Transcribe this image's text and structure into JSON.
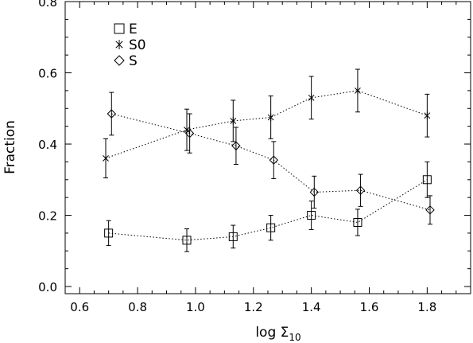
{
  "chart_data": {
    "type": "scatter",
    "xlabel": "log Σ",
    "xlabel_sub": "10",
    "ylabel": "Fraction",
    "xlim": [
      0.55,
      1.95
    ],
    "ylim": [
      -0.02,
      0.8
    ],
    "x_ticks": [
      "0.6",
      "0.8",
      "1.0",
      "1.2",
      "1.4",
      "1.6",
      "1.8"
    ],
    "y_ticks": [
      "0.0",
      "0.2",
      "0.4",
      "0.6",
      "0.8"
    ],
    "legend_position": "top-left",
    "series": [
      {
        "name": "E",
        "marker": "square",
        "points": [
          {
            "x": 0.7,
            "y": 0.15,
            "err": 0.035
          },
          {
            "x": 0.97,
            "y": 0.13,
            "err": 0.032
          },
          {
            "x": 1.13,
            "y": 0.14,
            "err": 0.032
          },
          {
            "x": 1.26,
            "y": 0.165,
            "err": 0.035
          },
          {
            "x": 1.4,
            "y": 0.2,
            "err": 0.04
          },
          {
            "x": 1.56,
            "y": 0.18,
            "err": 0.037
          },
          {
            "x": 1.8,
            "y": 0.3,
            "err": 0.05
          }
        ]
      },
      {
        "name": "S0",
        "marker": "asterisk",
        "points": [
          {
            "x": 0.69,
            "y": 0.36,
            "err": 0.055
          },
          {
            "x": 0.97,
            "y": 0.44,
            "err": 0.058
          },
          {
            "x": 1.13,
            "y": 0.465,
            "err": 0.058
          },
          {
            "x": 1.26,
            "y": 0.475,
            "err": 0.06
          },
          {
            "x": 1.4,
            "y": 0.53,
            "err": 0.06
          },
          {
            "x": 1.56,
            "y": 0.55,
            "err": 0.06
          },
          {
            "x": 1.8,
            "y": 0.48,
            "err": 0.06
          }
        ]
      },
      {
        "name": "S",
        "marker": "diamond",
        "points": [
          {
            "x": 0.71,
            "y": 0.485,
            "err": 0.06
          },
          {
            "x": 0.98,
            "y": 0.43,
            "err": 0.055
          },
          {
            "x": 1.14,
            "y": 0.395,
            "err": 0.052
          },
          {
            "x": 1.27,
            "y": 0.355,
            "err": 0.052
          },
          {
            "x": 1.41,
            "y": 0.265,
            "err": 0.045
          },
          {
            "x": 1.57,
            "y": 0.27,
            "err": 0.045
          },
          {
            "x": 1.81,
            "y": 0.215,
            "err": 0.04
          }
        ]
      }
    ]
  }
}
